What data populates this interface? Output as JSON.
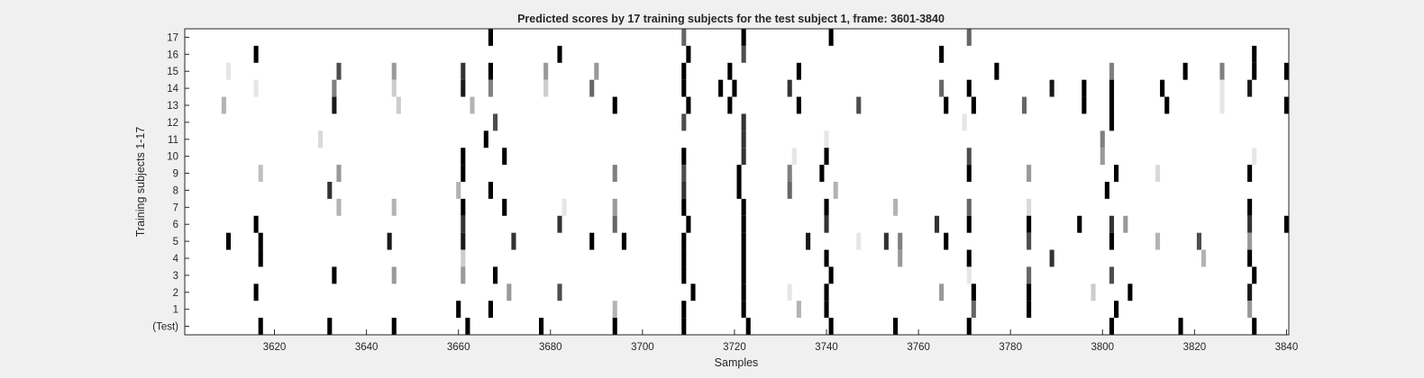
{
  "chart_data": {
    "type": "heatmap",
    "title": "Predicted scores by 17 training subjects for the test subject 1, frame: 3601-3840",
    "xlabel": "Samples",
    "ylabel": "Training subjects 1-17",
    "xlim": [
      3601,
      3840
    ],
    "xticks": [
      3620,
      3640,
      3660,
      3680,
      3700,
      3720,
      3740,
      3760,
      3780,
      3800,
      3820,
      3840
    ],
    "rows": [
      "17",
      "16",
      "15",
      "14",
      "13",
      "12",
      "11",
      "10",
      "9",
      "8",
      "7",
      "6",
      "5",
      "4",
      "3",
      "2",
      "1",
      "(Test)"
    ],
    "colormap": "white-to-black (higher score = darker)",
    "grid": false,
    "legend": "none",
    "series": [
      {
        "row": "17",
        "marks": [
          [
            3667,
            1
          ],
          [
            3709,
            0.6
          ],
          [
            3722,
            1
          ],
          [
            3741,
            1
          ],
          [
            3771,
            0.6
          ]
        ]
      },
      {
        "row": "16",
        "marks": [
          [
            3616,
            1
          ],
          [
            3682,
            1
          ],
          [
            3710,
            1
          ],
          [
            3722,
            0.7
          ],
          [
            3765,
            1
          ],
          [
            3833,
            1
          ]
        ]
      },
      {
        "row": "15",
        "marks": [
          [
            3610,
            0.1
          ],
          [
            3634,
            0.7
          ],
          [
            3646,
            0.4
          ],
          [
            3661,
            0.8
          ],
          [
            3667,
            1
          ],
          [
            3679,
            0.4
          ],
          [
            3690,
            0.4
          ],
          [
            3709,
            1
          ],
          [
            3719,
            1
          ],
          [
            3734,
            1
          ],
          [
            3777,
            1
          ],
          [
            3802,
            0.5
          ],
          [
            3818,
            1
          ],
          [
            3826,
            0.5
          ],
          [
            3833,
            1
          ],
          [
            3840,
            1
          ]
        ]
      },
      {
        "row": "14",
        "marks": [
          [
            3616,
            0.1
          ],
          [
            3633,
            0.5
          ],
          [
            3646,
            0.2
          ],
          [
            3661,
            0.9
          ],
          [
            3667,
            0.5
          ],
          [
            3679,
            0.2
          ],
          [
            3689,
            0.6
          ],
          [
            3709,
            1
          ],
          [
            3717,
            1
          ],
          [
            3720,
            1
          ],
          [
            3732,
            0.8
          ],
          [
            3765,
            0.6
          ],
          [
            3771,
            1
          ],
          [
            3789,
            0.9
          ],
          [
            3796,
            1
          ],
          [
            3802,
            1
          ],
          [
            3813,
            1
          ],
          [
            3826,
            0.1
          ],
          [
            3832,
            0.9
          ]
        ]
      },
      {
        "row": "13",
        "marks": [
          [
            3609,
            0.3
          ],
          [
            3633,
            0.9
          ],
          [
            3647,
            0.2
          ],
          [
            3663,
            0.3
          ],
          [
            3694,
            1
          ],
          [
            3710,
            1
          ],
          [
            3719,
            1
          ],
          [
            3734,
            1
          ],
          [
            3747,
            0.7
          ],
          [
            3766,
            1
          ],
          [
            3772,
            1
          ],
          [
            3783,
            0.6
          ],
          [
            3796,
            1
          ],
          [
            3802,
            1
          ],
          [
            3814,
            1
          ],
          [
            3826,
            0.1
          ],
          [
            3840,
            1
          ]
        ]
      },
      {
        "row": "12",
        "marks": [
          [
            3668,
            0.7
          ],
          [
            3709,
            0.7
          ],
          [
            3722,
            0.8
          ],
          [
            3770,
            0.1
          ],
          [
            3802,
            1
          ]
        ]
      },
      {
        "row": "11",
        "marks": [
          [
            3630,
            0.15
          ],
          [
            3666,
            1
          ],
          [
            3722,
            0.8
          ],
          [
            3740,
            0.1
          ],
          [
            3800,
            0.5
          ]
        ]
      },
      {
        "row": "10",
        "marks": [
          [
            3661,
            1
          ],
          [
            3670,
            1
          ],
          [
            3709,
            1
          ],
          [
            3722,
            0.8
          ],
          [
            3733,
            0.1
          ],
          [
            3740,
            1
          ],
          [
            3771,
            0.7
          ],
          [
            3800,
            0.4
          ],
          [
            3833,
            0.1
          ]
        ]
      },
      {
        "row": "9",
        "marks": [
          [
            3617,
            0.25
          ],
          [
            3634,
            0.4
          ],
          [
            3661,
            1
          ],
          [
            3694,
            0.5
          ],
          [
            3709,
            0.7
          ],
          [
            3721,
            1
          ],
          [
            3732,
            0.5
          ],
          [
            3739,
            1
          ],
          [
            3771,
            1
          ],
          [
            3784,
            0.4
          ],
          [
            3803,
            1
          ],
          [
            3812,
            0.15
          ],
          [
            3832,
            1
          ]
        ]
      },
      {
        "row": "8",
        "marks": [
          [
            3632,
            0.8
          ],
          [
            3660,
            0.3
          ],
          [
            3667,
            1
          ],
          [
            3709,
            0.8
          ],
          [
            3721,
            1
          ],
          [
            3732,
            0.6
          ],
          [
            3742,
            0.3
          ],
          [
            3801,
            1
          ]
        ]
      },
      {
        "row": "7",
        "marks": [
          [
            3634,
            0.3
          ],
          [
            3646,
            0.3
          ],
          [
            3661,
            1
          ],
          [
            3670,
            1
          ],
          [
            3683,
            0.1
          ],
          [
            3694,
            0.4
          ],
          [
            3709,
            1
          ],
          [
            3722,
            1
          ],
          [
            3740,
            1
          ],
          [
            3755,
            0.3
          ],
          [
            3771,
            0.6
          ],
          [
            3784,
            0.15
          ],
          [
            3832,
            1
          ]
        ]
      },
      {
        "row": "6",
        "marks": [
          [
            3616,
            1
          ],
          [
            3661,
            0.8
          ],
          [
            3682,
            0.8
          ],
          [
            3694,
            0.6
          ],
          [
            3710,
            1
          ],
          [
            3722,
            1
          ],
          [
            3740,
            0.8
          ],
          [
            3764,
            0.8
          ],
          [
            3771,
            1
          ],
          [
            3784,
            1
          ],
          [
            3795,
            1
          ],
          [
            3802,
            0.8
          ],
          [
            3805,
            0.4
          ],
          [
            3832,
            0.8
          ],
          [
            3840,
            1
          ]
        ]
      },
      {
        "row": "5",
        "marks": [
          [
            3610,
            1
          ],
          [
            3617,
            1
          ],
          [
            3645,
            0.9
          ],
          [
            3661,
            0.9
          ],
          [
            3672,
            0.8
          ],
          [
            3689,
            1
          ],
          [
            3696,
            1
          ],
          [
            3709,
            1
          ],
          [
            3722,
            1
          ],
          [
            3736,
            0.9
          ],
          [
            3747,
            0.1
          ],
          [
            3753,
            0.8
          ],
          [
            3756,
            0.5
          ],
          [
            3766,
            1
          ],
          [
            3784,
            0.7
          ],
          [
            3802,
            1
          ],
          [
            3812,
            0.3
          ],
          [
            3821,
            0.7
          ],
          [
            3832,
            0.4
          ]
        ]
      },
      {
        "row": "4",
        "marks": [
          [
            3617,
            1
          ],
          [
            3661,
            0.2
          ],
          [
            3709,
            1
          ],
          [
            3722,
            1
          ],
          [
            3740,
            1
          ],
          [
            3756,
            0.4
          ],
          [
            3771,
            1
          ],
          [
            3789,
            0.8
          ],
          [
            3822,
            0.3
          ],
          [
            3832,
            1
          ]
        ]
      },
      {
        "row": "3",
        "marks": [
          [
            3633,
            1
          ],
          [
            3646,
            0.4
          ],
          [
            3661,
            0.4
          ],
          [
            3668,
            1
          ],
          [
            3709,
            1
          ],
          [
            3722,
            1
          ],
          [
            3741,
            1
          ],
          [
            3771,
            0.1
          ],
          [
            3784,
            0.6
          ],
          [
            3802,
            0.7
          ],
          [
            3833,
            1
          ]
        ]
      },
      {
        "row": "2",
        "marks": [
          [
            3616,
            1
          ],
          [
            3671,
            0.4
          ],
          [
            3682,
            0.7
          ],
          [
            3711,
            1
          ],
          [
            3722,
            1
          ],
          [
            3732,
            0.1
          ],
          [
            3740,
            1
          ],
          [
            3765,
            0.4
          ],
          [
            3772,
            1
          ],
          [
            3784,
            1
          ],
          [
            3798,
            0.2
          ],
          [
            3806,
            1
          ],
          [
            3832,
            0.9
          ]
        ]
      },
      {
        "row": "1",
        "marks": [
          [
            3660,
            1
          ],
          [
            3667,
            1
          ],
          [
            3694,
            0.3
          ],
          [
            3709,
            1
          ],
          [
            3722,
            1
          ],
          [
            3734,
            0.3
          ],
          [
            3740,
            1
          ],
          [
            3772,
            0.6
          ],
          [
            3784,
            1
          ],
          [
            3803,
            1
          ],
          [
            3832,
            0.4
          ]
        ]
      },
      {
        "row": "(Test)",
        "marks": [
          [
            3617,
            1
          ],
          [
            3632,
            1
          ],
          [
            3646,
            1
          ],
          [
            3662,
            1
          ],
          [
            3678,
            1
          ],
          [
            3694,
            1
          ],
          [
            3709,
            1
          ],
          [
            3723,
            1
          ],
          [
            3741,
            1
          ],
          [
            3755,
            1
          ],
          [
            3771,
            1
          ],
          [
            3802,
            1
          ],
          [
            3817,
            1
          ],
          [
            3833,
            1
          ]
        ]
      }
    ]
  }
}
